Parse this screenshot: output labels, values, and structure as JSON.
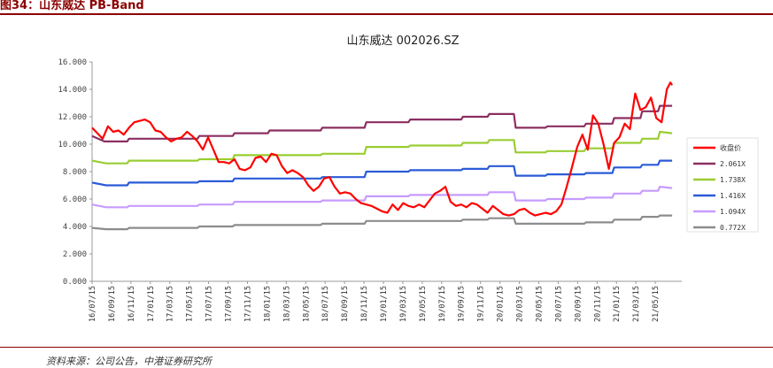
{
  "figure": {
    "caption": "图34：山东威达 PB-Band",
    "source": "资料来源：公司公告，中港证券研究所"
  },
  "chart_data": {
    "type": "line",
    "title": "山东威达 002026.SZ",
    "xlabel": "",
    "ylabel": "",
    "ylim": [
      0,
      16
    ],
    "yticks": [
      "0.000",
      "2.000",
      "4.000",
      "6.000",
      "8.000",
      "10.000",
      "12.000",
      "14.000",
      "16.000"
    ],
    "x_ticks": [
      "16/07/15",
      "16/09/15",
      "16/11/15",
      "17/01/15",
      "17/03/15",
      "17/05/15",
      "17/07/15",
      "17/09/15",
      "17/11/15",
      "18/01/15",
      "18/03/15",
      "18/05/15",
      "18/07/15",
      "18/09/15",
      "18/11/15",
      "19/01/15",
      "19/03/15",
      "19/05/15",
      "19/07/15",
      "19/09/15",
      "19/11/15",
      "20/01/15",
      "20/03/15",
      "20/05/15",
      "20/07/15",
      "20/09/15",
      "20/11/15",
      "21/01/15",
      "21/03/15",
      "21/05/15"
    ],
    "grid": false,
    "legend_position": "right",
    "colors": {
      "close": "#ff0000",
      "pb1": "#8b2f61",
      "pb2": "#9acd32",
      "pb3": "#2a5bd7",
      "pb4": "#c79bff",
      "pb5": "#8c8c8c"
    },
    "series": [
      {
        "name": "收盘价",
        "key": "close",
        "values": [
          [
            0,
            11.2
          ],
          [
            0.3,
            10.8
          ],
          [
            0.6,
            10.4
          ],
          [
            0.9,
            11.3
          ],
          [
            1.2,
            10.9
          ],
          [
            1.5,
            11.0
          ],
          [
            1.8,
            10.7
          ],
          [
            2.1,
            11.2
          ],
          [
            2.4,
            11.6
          ],
          [
            2.7,
            11.7
          ],
          [
            3.0,
            11.8
          ],
          [
            3.3,
            11.6
          ],
          [
            3.6,
            11.0
          ],
          [
            3.9,
            10.9
          ],
          [
            4.2,
            10.5
          ],
          [
            4.5,
            10.2
          ],
          [
            4.8,
            10.4
          ],
          [
            5.1,
            10.5
          ],
          [
            5.4,
            10.9
          ],
          [
            5.7,
            10.6
          ],
          [
            6.0,
            10.2
          ],
          [
            6.3,
            9.6
          ],
          [
            6.6,
            10.5
          ],
          [
            6.9,
            9.6
          ],
          [
            7.2,
            8.7
          ],
          [
            7.5,
            8.7
          ],
          [
            7.8,
            8.6
          ],
          [
            8.1,
            8.9
          ],
          [
            8.4,
            8.2
          ],
          [
            8.7,
            8.1
          ],
          [
            9.0,
            8.3
          ],
          [
            9.3,
            9.0
          ],
          [
            9.6,
            9.1
          ],
          [
            9.9,
            8.7
          ],
          [
            10.2,
            9.3
          ],
          [
            10.5,
            9.2
          ],
          [
            10.8,
            8.4
          ],
          [
            11.1,
            7.9
          ],
          [
            11.4,
            8.1
          ],
          [
            11.7,
            7.9
          ],
          [
            12.0,
            7.6
          ],
          [
            12.3,
            7.0
          ],
          [
            12.6,
            6.6
          ],
          [
            12.9,
            6.9
          ],
          [
            13.2,
            7.5
          ],
          [
            13.5,
            7.6
          ],
          [
            13.8,
            6.9
          ],
          [
            14.1,
            6.4
          ],
          [
            14.4,
            6.5
          ],
          [
            14.7,
            6.4
          ],
          [
            15.0,
            6.0
          ],
          [
            15.3,
            5.7
          ],
          [
            15.6,
            5.6
          ],
          [
            15.9,
            5.5
          ],
          [
            16.2,
            5.3
          ],
          [
            16.5,
            5.1
          ],
          [
            16.8,
            5.0
          ],
          [
            17.1,
            5.6
          ],
          [
            17.4,
            5.2
          ],
          [
            17.7,
            5.7
          ],
          [
            18.0,
            5.5
          ],
          [
            18.3,
            5.4
          ],
          [
            18.6,
            5.6
          ],
          [
            18.9,
            5.4
          ],
          [
            19.2,
            5.9
          ],
          [
            19.5,
            6.4
          ],
          [
            19.8,
            6.6
          ],
          [
            20.1,
            6.9
          ],
          [
            20.4,
            5.8
          ],
          [
            20.7,
            5.5
          ],
          [
            21.0,
            5.6
          ],
          [
            21.3,
            5.4
          ],
          [
            21.6,
            5.7
          ],
          [
            21.9,
            5.6
          ],
          [
            22.2,
            5.3
          ],
          [
            22.5,
            5.0
          ],
          [
            22.8,
            5.5
          ],
          [
            23.1,
            5.2
          ],
          [
            23.4,
            4.9
          ],
          [
            23.7,
            4.8
          ],
          [
            24.0,
            4.9
          ],
          [
            24.3,
            5.2
          ],
          [
            24.6,
            5.3
          ],
          [
            24.9,
            5.0
          ],
          [
            25.2,
            4.8
          ],
          [
            25.5,
            4.9
          ],
          [
            25.8,
            5.0
          ],
          [
            26.1,
            4.9
          ],
          [
            26.4,
            5.1
          ],
          [
            26.7,
            5.6
          ],
          [
            27.0,
            6.9
          ],
          [
            27.3,
            8.3
          ],
          [
            27.6,
            9.8
          ],
          [
            27.9,
            10.7
          ],
          [
            28.2,
            9.6
          ],
          [
            28.5,
            12.1
          ],
          [
            28.8,
            11.5
          ],
          [
            29.1,
            10.0
          ],
          [
            29.4,
            8.2
          ],
          [
            29.7,
            10.1
          ],
          [
            30.0,
            10.5
          ],
          [
            30.3,
            11.5
          ],
          [
            30.6,
            11.1
          ],
          [
            30.9,
            13.7
          ],
          [
            31.2,
            12.5
          ],
          [
            31.5,
            12.7
          ],
          [
            31.8,
            13.4
          ],
          [
            32.1,
            11.9
          ],
          [
            32.4,
            11.6
          ],
          [
            32.7,
            14.0
          ],
          [
            32.9,
            14.5
          ],
          [
            33.0,
            14.3
          ]
        ]
      },
      {
        "name": "2.061X",
        "key": "pb1",
        "values": [
          [
            0,
            10.6
          ],
          [
            0.7,
            10.2
          ],
          [
            2,
            10.2
          ],
          [
            2.1,
            10.4
          ],
          [
            6,
            10.4
          ],
          [
            6.1,
            10.6
          ],
          [
            8,
            10.6
          ],
          [
            8.1,
            10.8
          ],
          [
            10,
            10.8
          ],
          [
            10.1,
            11.0
          ],
          [
            13,
            11.0
          ],
          [
            13.1,
            11.2
          ],
          [
            15.5,
            11.2
          ],
          [
            15.6,
            11.6
          ],
          [
            18,
            11.6
          ],
          [
            18.1,
            11.8
          ],
          [
            21,
            11.8
          ],
          [
            21.1,
            12.0
          ],
          [
            22.5,
            12.0
          ],
          [
            22.6,
            12.2
          ],
          [
            24.0,
            12.2
          ],
          [
            24.1,
            11.2
          ],
          [
            25.8,
            11.2
          ],
          [
            25.9,
            11.3
          ],
          [
            28,
            11.3
          ],
          [
            28.1,
            11.5
          ],
          [
            29.6,
            11.5
          ],
          [
            29.7,
            11.9
          ],
          [
            31.2,
            11.9
          ],
          [
            31.3,
            12.4
          ],
          [
            32.2,
            12.4
          ],
          [
            32.3,
            12.8
          ],
          [
            33,
            12.8
          ]
        ]
      },
      {
        "name": "1.738X",
        "key": "pb2",
        "values": [
          [
            0,
            8.8
          ],
          [
            0.8,
            8.6
          ],
          [
            2,
            8.6
          ],
          [
            2.1,
            8.8
          ],
          [
            6,
            8.8
          ],
          [
            6.1,
            8.9
          ],
          [
            8,
            8.9
          ],
          [
            8.1,
            9.2
          ],
          [
            13,
            9.2
          ],
          [
            13.1,
            9.3
          ],
          [
            15.5,
            9.3
          ],
          [
            15.6,
            9.8
          ],
          [
            18,
            9.8
          ],
          [
            18.1,
            9.9
          ],
          [
            21,
            9.9
          ],
          [
            21.1,
            10.1
          ],
          [
            22.5,
            10.1
          ],
          [
            22.6,
            10.3
          ],
          [
            24.0,
            10.3
          ],
          [
            24.1,
            9.4
          ],
          [
            25.8,
            9.4
          ],
          [
            25.9,
            9.5
          ],
          [
            28,
            9.5
          ],
          [
            28.1,
            9.7
          ],
          [
            29.6,
            9.7
          ],
          [
            29.7,
            10.1
          ],
          [
            31.2,
            10.1
          ],
          [
            31.3,
            10.4
          ],
          [
            32.2,
            10.4
          ],
          [
            32.3,
            10.9
          ],
          [
            33,
            10.8
          ]
        ]
      },
      {
        "name": "1.416X",
        "key": "pb3",
        "values": [
          [
            0,
            7.2
          ],
          [
            0.8,
            7.0
          ],
          [
            2,
            7.0
          ],
          [
            2.1,
            7.2
          ],
          [
            6,
            7.2
          ],
          [
            6.1,
            7.3
          ],
          [
            8,
            7.3
          ],
          [
            8.1,
            7.5
          ],
          [
            13,
            7.5
          ],
          [
            13.1,
            7.6
          ],
          [
            15.5,
            7.6
          ],
          [
            15.6,
            8.0
          ],
          [
            18,
            8.0
          ],
          [
            18.1,
            8.1
          ],
          [
            21,
            8.1
          ],
          [
            21.1,
            8.2
          ],
          [
            22.5,
            8.2
          ],
          [
            22.6,
            8.4
          ],
          [
            24.0,
            8.4
          ],
          [
            24.1,
            7.7
          ],
          [
            25.8,
            7.7
          ],
          [
            25.9,
            7.8
          ],
          [
            28,
            7.8
          ],
          [
            28.1,
            7.9
          ],
          [
            29.6,
            7.9
          ],
          [
            29.7,
            8.3
          ],
          [
            31.2,
            8.3
          ],
          [
            31.3,
            8.5
          ],
          [
            32.2,
            8.5
          ],
          [
            32.3,
            8.8
          ],
          [
            33,
            8.8
          ]
        ]
      },
      {
        "name": "1.094X",
        "key": "pb4",
        "values": [
          [
            0,
            5.6
          ],
          [
            0.8,
            5.4
          ],
          [
            2,
            5.4
          ],
          [
            2.1,
            5.5
          ],
          [
            6,
            5.5
          ],
          [
            6.1,
            5.6
          ],
          [
            8,
            5.6
          ],
          [
            8.1,
            5.8
          ],
          [
            13,
            5.8
          ],
          [
            13.1,
            5.9
          ],
          [
            15.5,
            5.9
          ],
          [
            15.6,
            6.2
          ],
          [
            18,
            6.2
          ],
          [
            18.1,
            6.3
          ],
          [
            21,
            6.3
          ],
          [
            21.1,
            6.3
          ],
          [
            22.5,
            6.3
          ],
          [
            22.6,
            6.5
          ],
          [
            24.0,
            6.5
          ],
          [
            24.1,
            5.9
          ],
          [
            25.8,
            5.9
          ],
          [
            25.9,
            6.0
          ],
          [
            28,
            6.0
          ],
          [
            28.1,
            6.1
          ],
          [
            29.6,
            6.1
          ],
          [
            29.7,
            6.4
          ],
          [
            31.2,
            6.4
          ],
          [
            31.3,
            6.6
          ],
          [
            32.2,
            6.6
          ],
          [
            32.3,
            6.9
          ],
          [
            33,
            6.8
          ]
        ]
      },
      {
        "name": "0.772X",
        "key": "pb5",
        "values": [
          [
            0,
            3.9
          ],
          [
            0.8,
            3.8
          ],
          [
            2,
            3.8
          ],
          [
            2.1,
            3.9
          ],
          [
            6,
            3.9
          ],
          [
            6.1,
            4.0
          ],
          [
            8,
            4.0
          ],
          [
            8.1,
            4.1
          ],
          [
            13,
            4.1
          ],
          [
            13.1,
            4.2
          ],
          [
            15.5,
            4.2
          ],
          [
            15.6,
            4.4
          ],
          [
            18,
            4.4
          ],
          [
            18.1,
            4.4
          ],
          [
            21,
            4.4
          ],
          [
            21.1,
            4.5
          ],
          [
            22.5,
            4.5
          ],
          [
            22.6,
            4.6
          ],
          [
            24.0,
            4.6
          ],
          [
            24.1,
            4.2
          ],
          [
            25.8,
            4.2
          ],
          [
            25.9,
            4.2
          ],
          [
            28,
            4.2
          ],
          [
            28.1,
            4.3
          ],
          [
            29.6,
            4.3
          ],
          [
            29.7,
            4.5
          ],
          [
            31.2,
            4.5
          ],
          [
            31.3,
            4.7
          ],
          [
            32.2,
            4.7
          ],
          [
            32.3,
            4.8
          ],
          [
            33,
            4.8
          ]
        ]
      }
    ]
  }
}
